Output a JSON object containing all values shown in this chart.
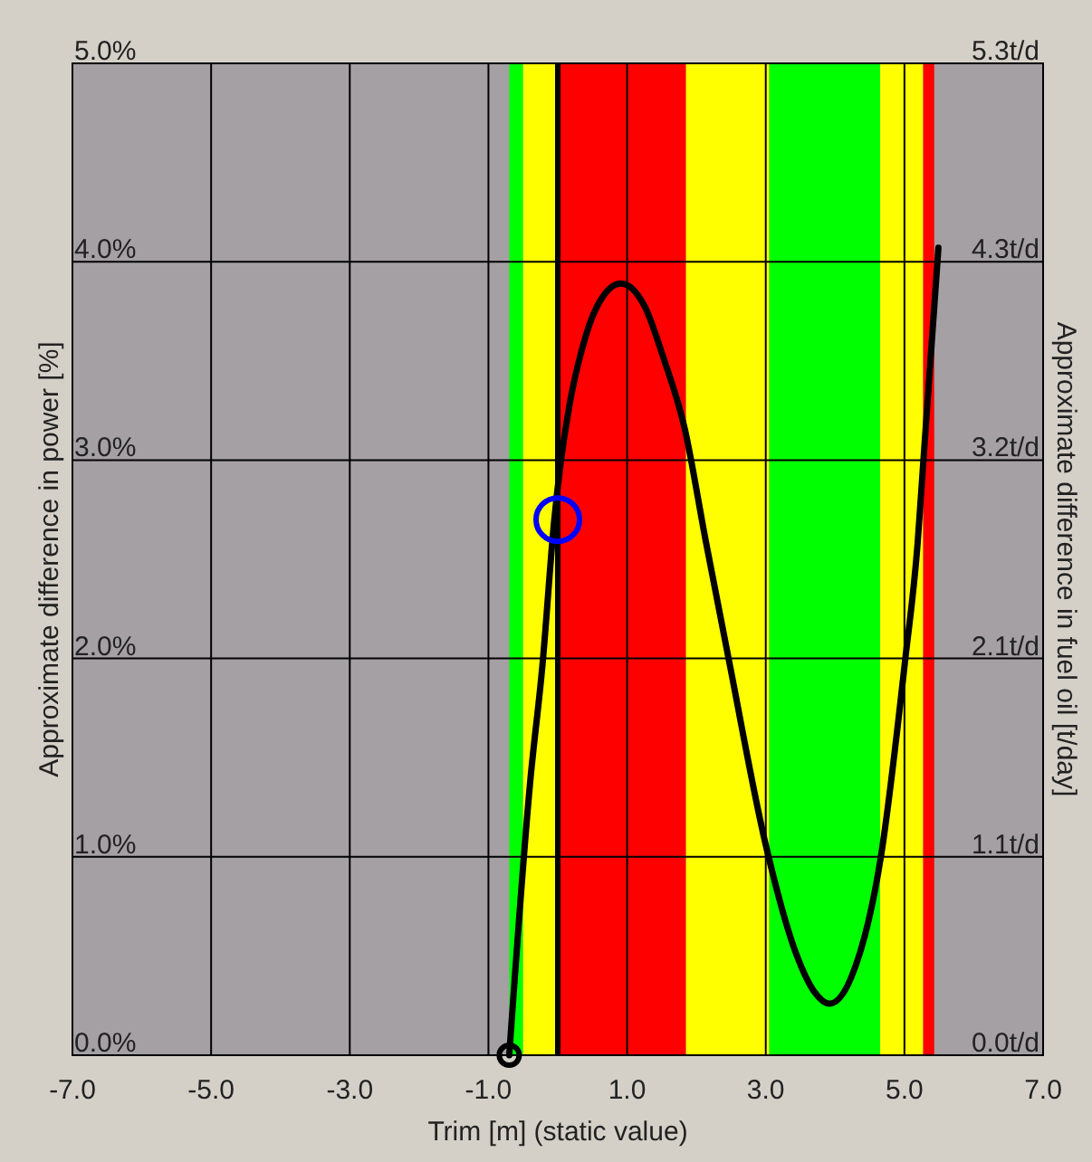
{
  "chart_data": {
    "type": "line",
    "xlabel": "Trim [m] (static value)",
    "ylabel": "Approximate difference in power [%]",
    "y2label": "Approximate difference in fuel oil [t/day]",
    "xlim": [
      -7,
      7
    ],
    "xticks": [
      {
        "value": -7,
        "label": "-7.0"
      },
      {
        "value": -5,
        "label": "-5.0"
      },
      {
        "value": -3,
        "label": "-3.0"
      },
      {
        "value": -1,
        "label": "-1.0"
      },
      {
        "value": 1,
        "label": "1.0"
      },
      {
        "value": 3,
        "label": "3.0"
      },
      {
        "value": 5,
        "label": "5.0"
      },
      {
        "value": 7,
        "label": "7.0"
      }
    ],
    "ylim": [
      0,
      5
    ],
    "yticks": [
      {
        "value": 0,
        "label": "0.0%"
      },
      {
        "value": 1,
        "label": "1.0%"
      },
      {
        "value": 2,
        "label": "2.0%"
      },
      {
        "value": 3,
        "label": "3.0%"
      },
      {
        "value": 4,
        "label": "4.0%"
      },
      {
        "value": 5,
        "label": "5.0%"
      }
    ],
    "y2lim": [
      0,
      5.325
    ],
    "y2ticks": [
      {
        "value": 0,
        "label": "0.0t/d"
      },
      {
        "value": 1.065,
        "label": "1.1t/d"
      },
      {
        "value": 2.13,
        "label": "2.1t/d"
      },
      {
        "value": 3.195,
        "label": "3.2t/d"
      },
      {
        "value": 4.26,
        "label": "4.3t/d"
      },
      {
        "value": 5.325,
        "label": "5.3t/d"
      }
    ],
    "grid": true,
    "bands": [
      {
        "axis": "x",
        "from": -0.7,
        "to": -0.5,
        "color": "#00ff00"
      },
      {
        "axis": "x",
        "from": -0.5,
        "to": 0,
        "color": "#ffff00"
      },
      {
        "axis": "x",
        "from": 0,
        "to": 1.85,
        "color": "#ff0000"
      },
      {
        "axis": "x",
        "from": 1.85,
        "to": 3.05,
        "color": "#ffff00"
      },
      {
        "axis": "x",
        "from": 3.05,
        "to": 4.65,
        "color": "#00ff00"
      },
      {
        "axis": "x",
        "from": 4.65,
        "to": 5.27,
        "color": "#ffff00"
      },
      {
        "axis": "x",
        "from": 5.27,
        "to": 5.43,
        "color": "#ff0000"
      }
    ],
    "ref_lines": [
      {
        "axis": "x",
        "value": 0,
        "color": "#000000"
      }
    ],
    "series": [
      {
        "color": "#000000",
        "line_style": "solid",
        "x": [
          -0.7,
          -0.4,
          -0.22,
          -0.05,
          0.04,
          0.17,
          0.35,
          0.56,
          0.91,
          1.26,
          1.52,
          1.83,
          2.13,
          2.48,
          3.0,
          3.44,
          3.7,
          3.92,
          4.23,
          4.66,
          5.01,
          5.19,
          5.27,
          5.49
        ],
        "values": [
          0,
          1.37,
          1.97,
          2.7,
          2.98,
          3.28,
          3.56,
          3.77,
          3.89,
          3.77,
          3.52,
          3.16,
          2.6,
          1.97,
          1.06,
          0.51,
          0.32,
          0.26,
          0.39,
          1.0,
          1.99,
          2.58,
          2.98,
          4.07
        ]
      },
      {
        "type": "scatter",
        "color": "#000000",
        "marker": "circle",
        "x": [
          -0.7
        ],
        "values": [
          0
        ]
      },
      {
        "type": "scatter",
        "color": "#0000ff",
        "marker": "circle",
        "x": [
          0
        ],
        "values": [
          2.7
        ]
      }
    ]
  }
}
